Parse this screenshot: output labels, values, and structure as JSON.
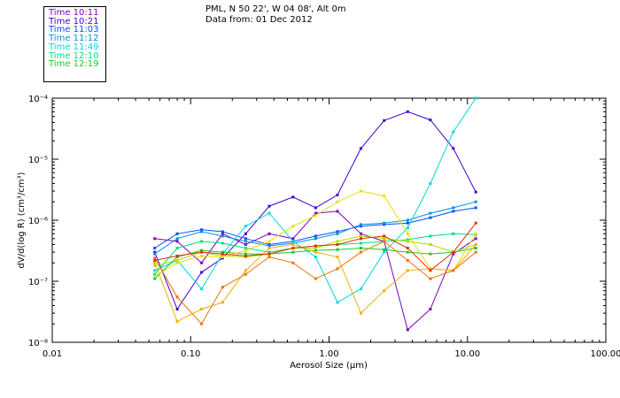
{
  "header": {
    "location": "PML, N 50 22', W 04 08', Alt 0m",
    "data_from": "Data from: 01 Dec 2012"
  },
  "chart_data": {
    "type": "line",
    "xscale": "log",
    "yscale": "log",
    "xlabel": "Aerosol Size (µm)",
    "ylabel": "dV/d(log R) (cm³/cm³)",
    "xlim": [
      0.01,
      100
    ],
    "ylim": [
      1e-08,
      0.0001
    ],
    "x_ticks": [
      {
        "value": 0.01,
        "label": "0.01"
      },
      {
        "value": 0.1,
        "label": "0.10"
      },
      {
        "value": 1,
        "label": "1.00"
      },
      {
        "value": 10,
        "label": "10.00"
      },
      {
        "value": 100,
        "label": "100.00"
      }
    ],
    "y_ticks": [
      {
        "value": 1e-08,
        "label": "10⁻⁸"
      },
      {
        "value": 1e-07,
        "label": "10⁻⁷"
      },
      {
        "value": 1e-06,
        "label": "10⁻⁶"
      },
      {
        "value": 1e-05,
        "label": "10⁻⁵"
      },
      {
        "value": 0.0001,
        "label": "10⁻⁴"
      }
    ],
    "series": [
      {
        "name": "Time 10:11",
        "color": "#8000c0",
        "x": [
          0.055,
          0.08,
          0.12,
          0.17,
          0.25,
          0.37,
          0.55,
          0.8,
          1.15,
          1.7,
          2.5,
          3.7,
          5.4,
          7.9,
          11.5
        ],
        "y": [
          5e-07,
          4.5e-07,
          2e-07,
          6e-07,
          4e-07,
          6e-07,
          5e-07,
          1.3e-06,
          1.4e-06,
          6e-07,
          4.5e-07,
          1.6e-08,
          3.5e-08,
          2.8e-07,
          5e-07
        ]
      },
      {
        "name": "Time 10:21",
        "color": "#4400cc",
        "x": [
          0.055,
          0.08,
          0.12,
          0.17,
          0.25,
          0.37,
          0.55,
          0.8,
          1.15,
          1.7,
          2.5,
          3.7,
          5.4,
          7.9,
          11.5
        ],
        "y": [
          3e-07,
          3.5e-08,
          1.4e-07,
          2.4e-07,
          6e-07,
          1.7e-06,
          2.4e-06,
          1.6e-06,
          2.6e-06,
          1.5e-05,
          4.3e-05,
          6e-05,
          4.4e-05,
          1.5e-05,
          2.9e-06
        ]
      },
      {
        "name": "Time 11:03",
        "color": "#0050ff",
        "x": [
          0.055,
          0.08,
          0.12,
          0.17,
          0.25,
          0.37,
          0.55,
          0.8,
          1.15,
          1.7,
          2.5,
          3.7,
          5.4,
          7.9,
          11.5
        ],
        "y": [
          3.5e-07,
          6e-07,
          7e-07,
          6.5e-07,
          5e-07,
          4e-07,
          4.5e-07,
          5.5e-07,
          6.5e-07,
          8e-07,
          8.5e-07,
          9e-07,
          1.1e-06,
          1.4e-06,
          1.6e-06
        ]
      },
      {
        "name": "Time 11:12",
        "color": "#0090e0",
        "x": [
          0.055,
          0.08,
          0.12,
          0.17,
          0.25,
          0.37,
          0.55,
          0.8,
          1.15,
          1.7,
          2.5,
          3.7,
          5.4,
          7.9,
          11.5
        ],
        "y": [
          2.8e-07,
          5e-07,
          6.5e-07,
          5.5e-07,
          4.5e-07,
          3.8e-07,
          4.2e-07,
          5e-07,
          6e-07,
          8.5e-07,
          9e-07,
          1e-06,
          1.3e-06,
          1.6e-06,
          2e-06
        ]
      },
      {
        "name": "Time 11:49",
        "color": "#00d8e0",
        "x": [
          0.055,
          0.08,
          0.12,
          0.17,
          0.25,
          0.37,
          0.55,
          0.8,
          1.15,
          1.7,
          2.5,
          3.7,
          5.4,
          7.9,
          11.5
        ],
        "y": [
          1.5e-07,
          2.2e-07,
          7.5e-08,
          2.8e-07,
          8e-07,
          1.3e-06,
          4.5e-07,
          2.5e-07,
          4.5e-08,
          7.5e-08,
          3e-07,
          7.5e-07,
          4e-06,
          2.8e-05,
          0.0001
        ]
      },
      {
        "name": "Time 12:10",
        "color": "#00e080",
        "x": [
          0.055,
          0.08,
          0.12,
          0.17,
          0.25,
          0.37,
          0.55,
          0.8,
          1.15,
          1.7,
          2.5,
          3.7,
          5.4,
          7.9,
          11.5
        ],
        "y": [
          1.3e-07,
          3.5e-07,
          4.5e-07,
          4.2e-07,
          3.5e-07,
          3e-07,
          3.5e-07,
          3.8e-07,
          4e-07,
          4.2e-07,
          4.5e-07,
          4.8e-07,
          5.5e-07,
          6e-07,
          5.8e-07
        ]
      },
      {
        "name": "Time 12:19",
        "color": "#20c820",
        "x": [
          0.055,
          0.08,
          0.12,
          0.17,
          0.25,
          0.37,
          0.55,
          0.8,
          1.15,
          1.7,
          2.5,
          3.7,
          5.4,
          7.9,
          11.5
        ],
        "y": [
          1.1e-07,
          2.5e-07,
          3.2e-07,
          3e-07,
          2.8e-07,
          2.8e-07,
          3e-07,
          3.2e-07,
          3.3e-07,
          3.5e-07,
          3.3e-07,
          3e-07,
          2.8e-07,
          3e-07,
          3.5e-07
        ]
      },
      {
        "name": "",
        "color": "#a8e000",
        "x": [
          0.055,
          0.08,
          0.12,
          0.17,
          0.25,
          0.37,
          0.55,
          0.8,
          1.15,
          1.7,
          2.5,
          3.7,
          5.4,
          7.9,
          11.5
        ],
        "y": [
          1.8e-07,
          2.2e-07,
          3e-07,
          2.6e-07,
          2.5e-07,
          2.8e-07,
          3.5e-07,
          3.5e-07,
          4.5e-07,
          5.5e-07,
          5e-07,
          4.5e-07,
          4e-07,
          3e-07,
          4e-07
        ]
      },
      {
        "name": "",
        "color": "#e8e000",
        "x": [
          0.055,
          0.08,
          0.12,
          0.17,
          0.25,
          0.37,
          0.55,
          0.8,
          1.15,
          1.7,
          2.5,
          3.7,
          5.4,
          7.9,
          11.5
        ],
        "y": [
          1.2e-07,
          2e-07,
          2.6e-07,
          2.5e-07,
          3.2e-07,
          4.5e-07,
          8e-07,
          1.2e-06,
          2e-06,
          3e-06,
          2.5e-06,
          6e-07,
          1.6e-07,
          1.5e-07,
          6e-07
        ]
      },
      {
        "name": "",
        "color": "#f0b000",
        "x": [
          0.055,
          0.08,
          0.12,
          0.17,
          0.25,
          0.37,
          0.55,
          0.8,
          1.15,
          1.7,
          2.5,
          3.7,
          5.4,
          7.9,
          11.5
        ],
        "y": [
          2e-07,
          2.2e-08,
          3.5e-08,
          4.5e-08,
          1.5e-07,
          3.5e-07,
          4e-07,
          3e-07,
          2.5e-07,
          3e-08,
          7e-08,
          1.5e-07,
          1.6e-07,
          1.5e-07,
          4e-07
        ]
      },
      {
        "name": "",
        "color": "#f07000",
        "x": [
          0.055,
          0.08,
          0.12,
          0.17,
          0.25,
          0.37,
          0.55,
          0.8,
          1.15,
          1.7,
          2.5,
          3.7,
          5.4,
          7.9,
          11.5
        ],
        "y": [
          2.4e-07,
          5.5e-08,
          2e-08,
          8e-08,
          1.3e-07,
          2.5e-07,
          2e-07,
          1.1e-07,
          1.6e-07,
          3e-07,
          4.5e-07,
          2.2e-07,
          1.1e-07,
          1.5e-07,
          3e-07
        ]
      },
      {
        "name": "",
        "color": "#e03000",
        "x": [
          0.055,
          0.08,
          0.12,
          0.17,
          0.25,
          0.37,
          0.55,
          0.8,
          1.15,
          1.7,
          2.5,
          3.7,
          5.4,
          7.9,
          11.5
        ],
        "y": [
          2.2e-07,
          2.6e-07,
          3e-07,
          2.8e-07,
          2.6e-07,
          2.8e-07,
          3.5e-07,
          3.8e-07,
          4e-07,
          5e-07,
          5.5e-07,
          3.5e-07,
          1.5e-07,
          3e-07,
          9e-07
        ]
      }
    ]
  }
}
